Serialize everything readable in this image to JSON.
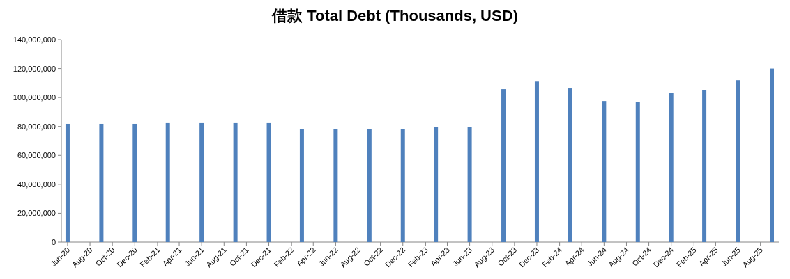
{
  "chart_data": {
    "type": "bar",
    "title": "借款 Total Debt (Thousands, USD)",
    "x": [
      "2020-06",
      "2020-09",
      "2020-12",
      "2021-03",
      "2021-06",
      "2021-09",
      "2021-12",
      "2022-03",
      "2022-06",
      "2022-09",
      "2022-12",
      "2023-03",
      "2023-06",
      "2023-09",
      "2023-12",
      "2024-03",
      "2024-06",
      "2024-09",
      "2024-12",
      "2025-03",
      "2025-06",
      "2025-09"
    ],
    "series": [
      {
        "color": "#4f81bd",
        "values": [
          81800000,
          81800000,
          81800000,
          82300000,
          82300000,
          82300000,
          82300000,
          78400000,
          78400000,
          78400000,
          78400000,
          79400000,
          79400000,
          105800000,
          111000000,
          106300000,
          97600000,
          96700000,
          103000000,
          104900000,
          112000000,
          120000000
        ]
      }
    ],
    "xlim": [
      "2020-05-15",
      "2025-09-20"
    ],
    "xticks": [
      {
        "value": "2020-06",
        "label": "Jun-20"
      },
      {
        "value": "2020-08",
        "label": "Aug-20"
      },
      {
        "value": "2020-10",
        "label": "Oct-20"
      },
      {
        "value": "2020-12",
        "label": "Dec-20"
      },
      {
        "value": "2021-02",
        "label": "Feb-21"
      },
      {
        "value": "2021-04",
        "label": "Apr-21"
      },
      {
        "value": "2021-06",
        "label": "Jun-21"
      },
      {
        "value": "2021-08",
        "label": "Aug-21"
      },
      {
        "value": "2021-10",
        "label": "Oct-21"
      },
      {
        "value": "2021-12",
        "label": "Dec-21"
      },
      {
        "value": "2022-02",
        "label": "Feb-22"
      },
      {
        "value": "2022-04",
        "label": "Apr-22"
      },
      {
        "value": "2022-06",
        "label": "Jun-22"
      },
      {
        "value": "2022-08",
        "label": "Aug-22"
      },
      {
        "value": "2022-10",
        "label": "Oct-22"
      },
      {
        "value": "2022-12",
        "label": "Dec-22"
      },
      {
        "value": "2023-02",
        "label": "Feb-23"
      },
      {
        "value": "2023-04",
        "label": "Apr-23"
      },
      {
        "value": "2023-06",
        "label": "Jun-23"
      },
      {
        "value": "2023-08",
        "label": "Aug-23"
      },
      {
        "value": "2023-10",
        "label": "Oct-23"
      },
      {
        "value": "2023-12",
        "label": "Dec-23"
      },
      {
        "value": "2024-02",
        "label": "Feb-24"
      },
      {
        "value": "2024-04",
        "label": "Apr-24"
      },
      {
        "value": "2024-06",
        "label": "Jun-24"
      },
      {
        "value": "2024-08",
        "label": "Aug-24"
      },
      {
        "value": "2024-10",
        "label": "Oct-24"
      },
      {
        "value": "2024-12",
        "label": "Dec-24"
      },
      {
        "value": "2025-02",
        "label": "Feb-25"
      },
      {
        "value": "2025-04",
        "label": "Apr-25"
      },
      {
        "value": "2025-06",
        "label": "Jun-25"
      },
      {
        "value": "2025-08",
        "label": "Aug-25"
      }
    ],
    "ylim": [
      0,
      140000000
    ],
    "yticks": [
      {
        "value": 0,
        "label": "0"
      },
      {
        "value": 20000000,
        "label": "20,000,000"
      },
      {
        "value": 40000000,
        "label": "40,000,000"
      },
      {
        "value": 60000000,
        "label": "60,000,000"
      },
      {
        "value": 80000000,
        "label": "80,000,000"
      },
      {
        "value": 100000000,
        "label": "100,000,000"
      },
      {
        "value": 120000000,
        "label": "120,000,000"
      },
      {
        "value": 140000000,
        "label": "140,000,000"
      }
    ],
    "grid": false
  }
}
